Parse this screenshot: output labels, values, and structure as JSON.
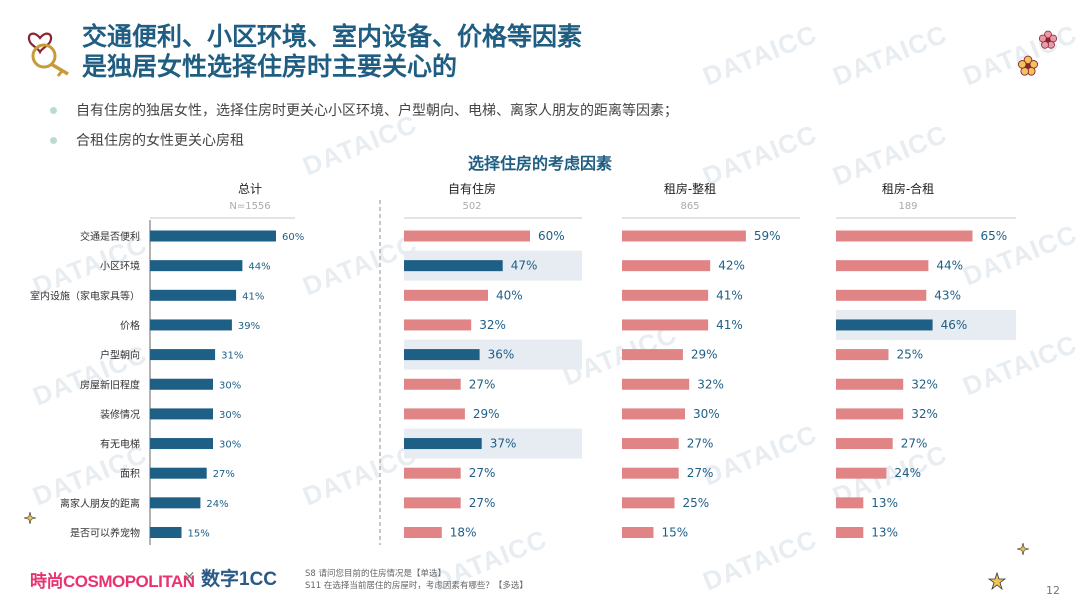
{
  "slide": {
    "title_line1": "交通便利、小区环境、室内设备、价格等因素",
    "title_line2": "是独居女性选择住房时主要关心的",
    "bullets": [
      "自有住房的独居女性，选择住房时更关心小区环境、户型朝向、电梯、离家人朋友的距离等因素；",
      "合租住房的女性更关心房租"
    ],
    "chart_title": "选择住房的考虑因素",
    "footnote1": "S8 请问您目前的住房情况是【单选】",
    "footnote2": "S11 在选择当前居住的房屋时，考虑因素有哪些？【多选】",
    "page_number": "12",
    "logo_cosmopolitan": "時尚COSMOPOLITAN",
    "logo_x": "×",
    "logo_datadigit": "数字1CC",
    "watermark": "DATAICC"
  },
  "colors": {
    "navy": "#1e5f86",
    "pink": "#e08486",
    "highlight": "#e6ecf1",
    "title": "#1f5e82"
  },
  "chart_data": {
    "type": "bar",
    "orientation": "horizontal",
    "title": "选择住房的考虑因素",
    "categories": [
      "交通是否便利",
      "小区环境",
      "室内设施（家电家具等）",
      "价格",
      "户型朝向",
      "房屋新旧程度",
      "装修情况",
      "有无电梯",
      "面积",
      "离家人朋友的距离",
      "是否可以养宠物"
    ],
    "unit": "%",
    "panels": [
      {
        "name": "总计",
        "base": "N=1556",
        "values": [
          60,
          44,
          41,
          39,
          31,
          30,
          30,
          30,
          27,
          24,
          15
        ],
        "highlight": []
      },
      {
        "name": "自有住房",
        "base": "502",
        "values": [
          60,
          47,
          40,
          32,
          36,
          27,
          29,
          37,
          27,
          27,
          18
        ],
        "highlight": [
          1,
          4,
          7
        ]
      },
      {
        "name": "租房-整租",
        "base": "865",
        "values": [
          59,
          42,
          41,
          41,
          29,
          32,
          30,
          27,
          27,
          25,
          15
        ],
        "highlight": []
      },
      {
        "name": "租房-合租",
        "base": "189",
        "values": [
          65,
          44,
          43,
          46,
          25,
          32,
          32,
          27,
          24,
          13,
          13
        ],
        "highlight": [
          3
        ]
      }
    ]
  }
}
